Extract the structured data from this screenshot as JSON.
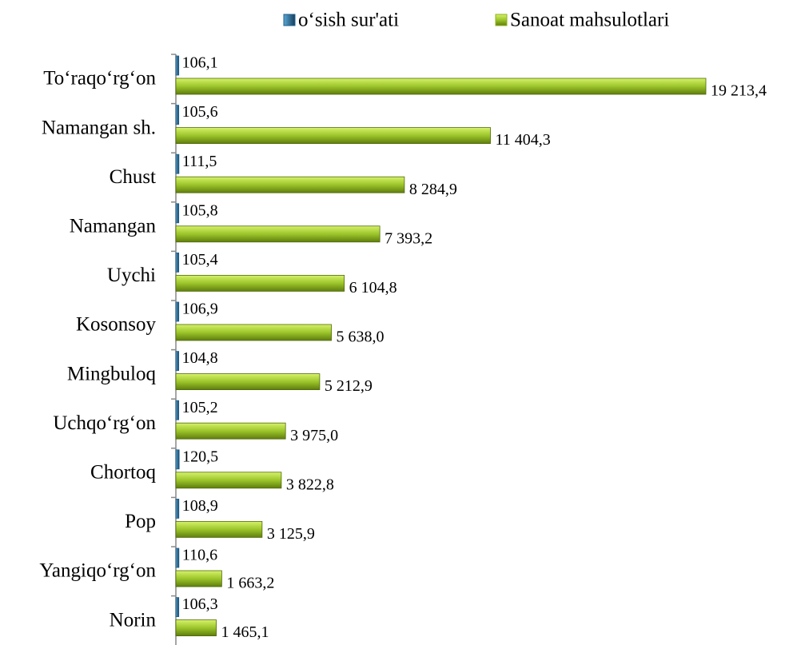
{
  "chart_data": {
    "type": "bar",
    "orientation": "horizontal",
    "categories": [
      "To‘raqo‘rg‘on",
      "Namangan sh.",
      "Chust",
      "Namangan",
      "Uychi",
      "Kosonsoy",
      "Mingbuloq",
      "Uchqo‘rg‘on",
      "Chortoq",
      "Pop",
      "Yangiqo‘rg‘on",
      "Norin"
    ],
    "series": [
      {
        "name": "o‘sish sur'ati",
        "color": "#1f5f8b",
        "values": [
          106.1,
          105.6,
          111.5,
          105.8,
          105.4,
          106.9,
          104.8,
          105.2,
          120.5,
          108.9,
          110.6,
          106.3
        ],
        "value_labels": [
          "106,1",
          "105,6",
          "111,5",
          "105,8",
          "105,4",
          "106,9",
          "104,8",
          "105,2",
          "120,5",
          "108,9",
          "110,6",
          "106,3"
        ]
      },
      {
        "name": "Sanoat mahsulotlari",
        "color": "#8db31c",
        "values": [
          19213.4,
          11404.3,
          8284.9,
          7393.2,
          6104.8,
          5638.0,
          5212.9,
          3975.0,
          3822.8,
          3125.9,
          1663.2,
          1465.1
        ],
        "value_labels": [
          "19 213,4",
          "11 404,3",
          "8 284,9",
          "7 393,2",
          "6 104,8",
          "5 638,0",
          "5 212,9",
          "3 975,0",
          "3 822,8",
          "3 125,9",
          "1 663,2",
          "1 465,1"
        ]
      }
    ],
    "legend": "top"
  }
}
